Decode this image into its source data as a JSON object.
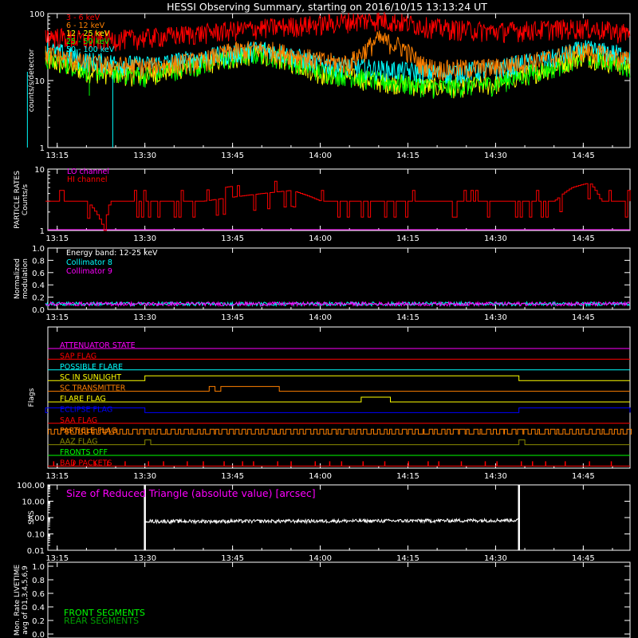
{
  "title": "HESSI Observing Summary, starting on 2016/10/15 13:13:24 UT",
  "time_axis": {
    "start": "13:13:24",
    "end": "14:53:00",
    "tick_labels": [
      "13:15",
      "13:30",
      "13:45",
      "14:00",
      "14:15",
      "14:30",
      "14:45"
    ]
  },
  "colors": {
    "background": "#000000",
    "axis": "#ffffff",
    "band_3_6": "#ff0000",
    "band_6_12": "#ff8000",
    "band_12_25": "#ffff00",
    "band_25_50": "#00ff00",
    "band_50_100": "#00ffff",
    "hi_channel": "#ff0000",
    "magenta": "#ff00ff",
    "flag_blue": "#0000ff",
    "olive": "#8c8c00",
    "front_segments": "#00ff00",
    "rear_segments": "#00a000"
  },
  "chart_data": [
    {
      "type": "line",
      "panel": "count_rates",
      "ylabel": "counts/s/detector",
      "yscale": "log",
      "ylim": [
        1,
        100
      ],
      "y_tick_labels": [
        "1",
        "10",
        "100"
      ],
      "series": [
        {
          "name": "3 - 6 keV",
          "color": "#ff0000",
          "x": [
            "13:13",
            "13:20",
            "13:30",
            "13:40",
            "13:50",
            "14:00",
            "14:05",
            "14:10",
            "14:15",
            "14:20",
            "14:30",
            "14:40",
            "14:45",
            "14:53"
          ],
          "y": [
            48,
            40,
            44,
            52,
            62,
            70,
            78,
            82,
            72,
            62,
            55,
            60,
            62,
            52
          ]
        },
        {
          "name": "6 - 12 keV",
          "color": "#ff8000",
          "x": [
            "13:13",
            "13:20",
            "13:30",
            "13:40",
            "13:45",
            "13:50",
            "14:00",
            "14:05",
            "14:08",
            "14:10",
            "14:14",
            "14:17",
            "14:20",
            "14:30",
            "14:40",
            "14:45",
            "14:53"
          ],
          "y": [
            25,
            18,
            16,
            20,
            28,
            30,
            20,
            18,
            30,
            42,
            32,
            18,
            15,
            16,
            22,
            28,
            20
          ]
        },
        {
          "name": "12 - 25 keV",
          "color": "#ffff00",
          "x": [
            "13:13",
            "13:20",
            "13:30",
            "13:40",
            "13:50",
            "14:00",
            "14:10",
            "14:20",
            "14:30",
            "14:40",
            "14:45",
            "14:53"
          ],
          "y": [
            20,
            14,
            12,
            18,
            26,
            13,
            10,
            8,
            9,
            16,
            24,
            16
          ]
        },
        {
          "name": "25 - 50 keV",
          "color": "#00ff00",
          "x": [
            "13:13",
            "13:20",
            "13:30",
            "13:40",
            "13:50",
            "14:00",
            "14:10",
            "14:20",
            "14:30",
            "14:40",
            "14:45",
            "14:53"
          ],
          "y": [
            22,
            15,
            12,
            18,
            26,
            14,
            10,
            8,
            9,
            16,
            24,
            17
          ]
        },
        {
          "name": "50 - 100 keV",
          "color": "#00ffff",
          "x": [
            "13:13",
            "13:20",
            "13:30",
            "13:40",
            "13:50",
            "14:00",
            "14:10",
            "14:20",
            "14:30",
            "14:40",
            "14:45",
            "14:53"
          ],
          "y": [
            30,
            20,
            17,
            22,
            30,
            18,
            15,
            13,
            15,
            22,
            30,
            24
          ]
        }
      ]
    },
    {
      "type": "line",
      "panel": "particle_rates",
      "ylabel": "PARTICLE RATES\nCounts/s",
      "yscale": "log",
      "ylim": [
        1,
        10
      ],
      "y_tick_labels": [
        "1",
        "10"
      ],
      "series": [
        {
          "name": "LO channel",
          "color": "#ff00ff",
          "x": [
            "13:13",
            "14:53"
          ],
          "y": [
            1,
            1
          ]
        },
        {
          "name": "HI channel",
          "color": "#ff0000",
          "x": [
            "13:13",
            "13:20",
            "13:23",
            "13:24",
            "13:40",
            "13:55",
            "14:00",
            "14:40",
            "14:43",
            "14:46",
            "14:48",
            "14:53"
          ],
          "y": [
            3,
            3,
            1,
            3,
            3,
            4.5,
            3,
            3,
            5,
            6,
            3,
            3
          ]
        }
      ]
    },
    {
      "type": "line",
      "panel": "normalized_modulation",
      "ylabel": "Normalized\nmodulation",
      "ylim": [
        0,
        1
      ],
      "y_tick_labels": [
        "0.0",
        "0.2",
        "0.4",
        "0.6",
        "0.8",
        "1.0"
      ],
      "annotation": "Energy band: 12-25 keV",
      "series": [
        {
          "name": "Collimator 8",
          "color": "#00ffff",
          "x": [
            "13:13",
            "14:53"
          ],
          "y": [
            0.09,
            0.09
          ]
        },
        {
          "name": "Collimator 9",
          "color": "#ff00ff",
          "x": [
            "13:13",
            "14:53"
          ],
          "y": [
            0.09,
            0.09
          ]
        }
      ]
    },
    {
      "type": "line",
      "panel": "flags",
      "ylabel": "Flags",
      "series": [
        {
          "name": "ATTENUATOR STATE",
          "color": "#ff00ff",
          "intervals": []
        },
        {
          "name": "SAP FLAG",
          "color": "#ff0000",
          "intervals": []
        },
        {
          "name": "POSSIBLE FLARE",
          "color": "#00ffff",
          "intervals": []
        },
        {
          "name": "SC IN SUNLIGHT",
          "color": "#ffff00",
          "intervals": [
            [
              "13:30",
              "14:34"
            ]
          ]
        },
        {
          "name": "SC TRANSMITTER",
          "color": "#ff8000",
          "intervals": [
            [
              "13:41",
              "13:42"
            ],
            [
              "13:43",
              "13:53"
            ]
          ]
        },
        {
          "name": "FLARE FLAG",
          "color": "#ffff00",
          "intervals": [
            [
              "14:07",
              "14:12"
            ]
          ]
        },
        {
          "name": "ECLIPSE FLAG",
          "color": "#0000ff",
          "intervals": [
            [
              "13:13",
              "13:30"
            ],
            [
              "14:34",
              "14:53"
            ]
          ]
        },
        {
          "name": "SAA FLAG",
          "color": "#ff0000",
          "intervals": []
        },
        {
          "name": "PARTICLE FLAG",
          "color": "#ff8000",
          "intervals": "frequent short"
        },
        {
          "name": "AAZ FLAG",
          "color": "#8c8c00",
          "intervals": [
            [
              "13:30",
              "13:31"
            ],
            [
              "14:34",
              "14:35"
            ]
          ]
        },
        {
          "name": "FRONTS OFF",
          "color": "#00ff00",
          "intervals": []
        },
        {
          "name": "BAD PACKETS",
          "color": "#ff0000",
          "intervals": "spikes"
        }
      ]
    },
    {
      "type": "line",
      "panel": "sas",
      "ylabel": "SAS",
      "yscale": "log",
      "ylim": [
        0.01,
        100
      ],
      "y_tick_labels": [
        "0.01",
        "0.10",
        "1.00",
        "10.00",
        "100.00"
      ],
      "annotation": "Size of Reduced Triangle (absolute value) [arcsec]",
      "series": [
        {
          "color": "#ffffff",
          "x": [
            "13:30",
            "13:31",
            "13:40",
            "14:00",
            "14:20",
            "14:33",
            "14:34"
          ],
          "y": [
            0.7,
            0.6,
            0.6,
            0.62,
            0.65,
            0.7,
            0.7
          ]
        }
      ]
    },
    {
      "type": "line",
      "panel": "livetime",
      "ylabel": "Mon. Rate LIVETIME\navg of D1,3,4,5,6,9",
      "ylim": [
        0,
        1
      ],
      "y_tick_labels": [
        "0.0",
        "0.2",
        "0.4",
        "0.6",
        "0.8",
        "1.0"
      ],
      "series": [
        {
          "name": "FRONT SEGMENTS",
          "color": "#00ff00",
          "x": [],
          "y": []
        },
        {
          "name": "REAR SEGMENTS",
          "color": "#00a000",
          "x": [],
          "y": []
        }
      ]
    }
  ]
}
